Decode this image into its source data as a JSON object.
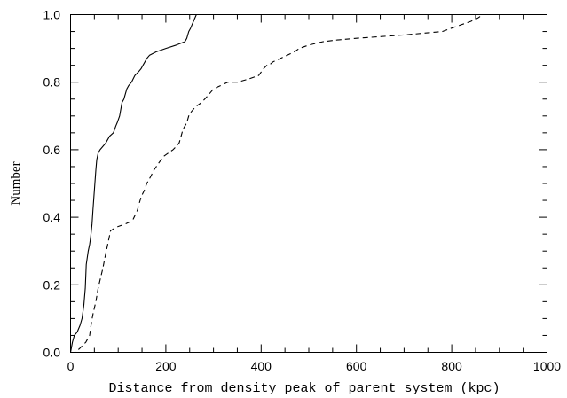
{
  "chart_data": {
    "type": "line",
    "title": "",
    "xlabel": "Distance from density peak of parent system (kpc)",
    "ylabel": "Number",
    "xlim": [
      0,
      1000
    ],
    "ylim": [
      0,
      1.0
    ],
    "xticks": [
      0,
      200,
      400,
      600,
      800,
      1000
    ],
    "yticks": [
      0.0,
      0.2,
      0.4,
      0.6,
      0.8,
      1.0
    ],
    "xtick_labels": [
      "0",
      "200",
      "400",
      "600",
      "800",
      "1000"
    ],
    "ytick_labels": [
      "0.0",
      "0.2",
      "0.4",
      "0.6",
      "0.8",
      "1.0"
    ],
    "grid": false,
    "legend": "none",
    "series": [
      {
        "style": "solid",
        "x": [
          0,
          4,
          8,
          14,
          20,
          24,
          28,
          31,
          33,
          35,
          37,
          40,
          42,
          45,
          47,
          49,
          51,
          53,
          55,
          58,
          62,
          68,
          74,
          82,
          90,
          95,
          98,
          103,
          108,
          112,
          118,
          122,
          128,
          135,
          142,
          148,
          152,
          156,
          160,
          166,
          180,
          200,
          222,
          240,
          244,
          248,
          252,
          258,
          264
        ],
        "y": [
          0.0,
          0.03,
          0.05,
          0.06,
          0.08,
          0.1,
          0.14,
          0.19,
          0.26,
          0.28,
          0.3,
          0.32,
          0.34,
          0.38,
          0.42,
          0.46,
          0.5,
          0.54,
          0.57,
          0.59,
          0.6,
          0.61,
          0.62,
          0.64,
          0.65,
          0.67,
          0.68,
          0.7,
          0.74,
          0.75,
          0.78,
          0.79,
          0.8,
          0.82,
          0.83,
          0.84,
          0.85,
          0.86,
          0.87,
          0.88,
          0.89,
          0.9,
          0.91,
          0.92,
          0.93,
          0.95,
          0.96,
          0.98,
          1.0
        ]
      },
      {
        "style": "dashed",
        "x": [
          0,
          5,
          10,
          18,
          25,
          32,
          40,
          44,
          48,
          53,
          58,
          63,
          68,
          72,
          78,
          84,
          95,
          115,
          130,
          140,
          148,
          155,
          160,
          168,
          175,
          185,
          195,
          205,
          215,
          222,
          228,
          232,
          236,
          240,
          244,
          248,
          252,
          258,
          265,
          275,
          288,
          300,
          315,
          330,
          350,
          375,
          395,
          405,
          412,
          416,
          425,
          440,
          455,
          470,
          480,
          500,
          530,
          560,
          600,
          650,
          700,
          740,
          780,
          800,
          820,
          840,
          855,
          865
        ],
        "y": [
          0.0,
          0.0,
          0.0,
          0.01,
          0.02,
          0.03,
          0.05,
          0.09,
          0.12,
          0.15,
          0.19,
          0.22,
          0.25,
          0.28,
          0.32,
          0.36,
          0.37,
          0.38,
          0.39,
          0.42,
          0.46,
          0.48,
          0.5,
          0.52,
          0.54,
          0.56,
          0.58,
          0.59,
          0.6,
          0.61,
          0.62,
          0.64,
          0.66,
          0.67,
          0.68,
          0.7,
          0.71,
          0.72,
          0.73,
          0.74,
          0.76,
          0.78,
          0.79,
          0.8,
          0.8,
          0.81,
          0.82,
          0.84,
          0.85,
          0.85,
          0.86,
          0.87,
          0.88,
          0.89,
          0.9,
          0.91,
          0.92,
          0.925,
          0.93,
          0.935,
          0.94,
          0.945,
          0.95,
          0.96,
          0.97,
          0.98,
          0.99,
          1.0
        ]
      }
    ]
  }
}
